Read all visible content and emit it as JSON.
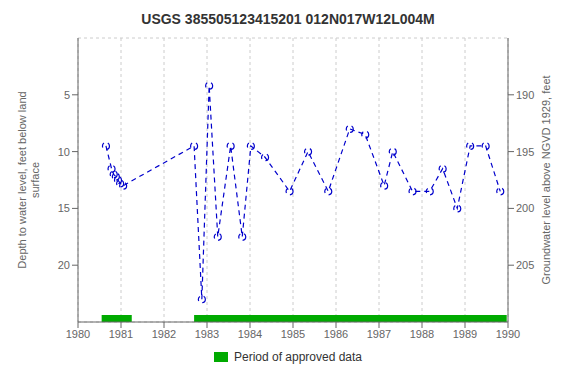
{
  "chart_data": {
    "type": "line",
    "title": "USGS 385505123415201 012N017W12L004M",
    "ylabel": "Depth to water level, feet below land\nsurface",
    "y2label": "Groundwater level above NGVD 1929, feet",
    "x": [
      1980.65,
      1980.78,
      1980.83,
      1980.88,
      1980.93,
      1980.98,
      1981.05,
      1982.7,
      1982.88,
      1983.05,
      1983.25,
      1983.55,
      1983.82,
      1984.02,
      1984.35,
      1984.92,
      1985.35,
      1985.82,
      1986.32,
      1986.68,
      1987.12,
      1987.32,
      1987.78,
      1988.18,
      1988.48,
      1988.82,
      1989.12,
      1989.48,
      1989.82
    ],
    "values": [
      9.5,
      11.5,
      12.0,
      12.2,
      12.5,
      12.8,
      13.0,
      9.5,
      23.0,
      4.2,
      17.5,
      9.5,
      17.5,
      9.5,
      10.5,
      13.5,
      10.0,
      13.5,
      8.0,
      8.5,
      13.0,
      10.0,
      13.5,
      13.5,
      11.5,
      15.0,
      9.5,
      9.5,
      13.5
    ],
    "color": "#0000cc",
    "marker": "circle",
    "line_style": "dashed",
    "xlim": [
      1980,
      1990
    ],
    "xticks": [
      1980,
      1981,
      1982,
      1983,
      1984,
      1985,
      1986,
      1987,
      1988,
      1989,
      1990
    ],
    "ylim": [
      25,
      0
    ],
    "yticks": [
      5,
      10,
      15,
      20
    ],
    "y2lim": [
      210,
      185
    ],
    "y2ticks": [
      190,
      195,
      200,
      205
    ],
    "grid": true,
    "legend": "bottom",
    "approved_periods": {
      "name": "Period of approved data",
      "color": "#00aa00",
      "periods": [
        [
          1980.55,
          1981.25
        ],
        [
          1982.7,
          1989.97
        ]
      ]
    }
  }
}
